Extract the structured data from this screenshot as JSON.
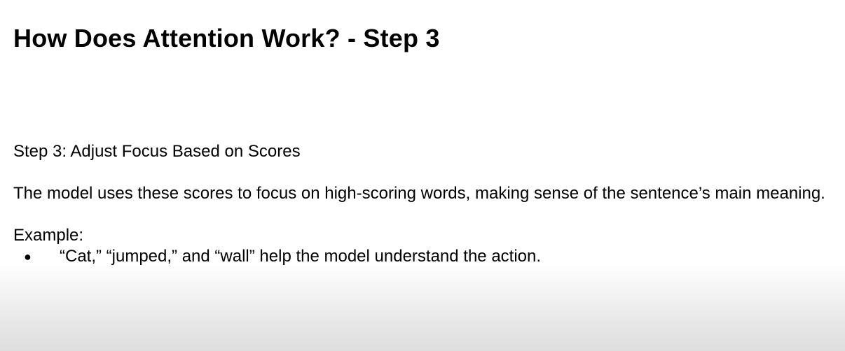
{
  "slide": {
    "title": "How Does Attention Work? - Step 3",
    "step_heading": "Step 3: Adjust Focus Based on Scores",
    "description": "The model uses these scores to focus on high-scoring words, making sense of the sentence’s main meaning.",
    "example_label": "Example:",
    "bullets": [
      "“Cat,” “jumped,” and “wall” help the model understand the action."
    ],
    "bullet_glyph": "●"
  }
}
